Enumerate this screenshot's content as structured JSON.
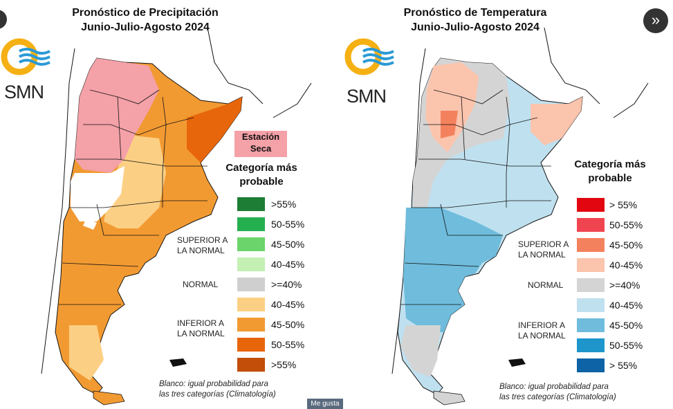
{
  "brand": "SMN",
  "precip": {
    "title_line1": "Pronóstico de Precipitación",
    "title_line2": "Junio-Julio-Agosto 2024",
    "estacion_line1": "Estación",
    "estacion_line2": "Seca",
    "legend_title_line1": "Categoría más",
    "legend_title_line2": "probable",
    "legend": [
      {
        "label": ">55%",
        "color": "#1e7d35"
      },
      {
        "label": "50-55%",
        "color": "#25b050"
      },
      {
        "label": "45-50%",
        "color": "#6bd46b"
      },
      {
        "label": "40-45%",
        "color": "#c4f0b4"
      },
      {
        "label": ">=40%",
        "color": "#cfcfcf"
      },
      {
        "label": "40-45%",
        "color": "#fcd084"
      },
      {
        "label": "45-50%",
        "color": "#f29a32"
      },
      {
        "label": "50-55%",
        "color": "#e7660c"
      },
      {
        "label": ">55%",
        "color": "#c24e0a"
      }
    ],
    "group_superior_1": "SUPERIOR A",
    "group_superior_2": "LA NORMAL",
    "group_normal": "NORMAL",
    "group_inferior_1": "INFERIOR A",
    "group_inferior_2": "LA NORMAL",
    "note_line1": "Blanco: igual probabilidad para",
    "note_line2": "las tres categorías (Climatología)"
  },
  "temp": {
    "title_line1": "Pronóstico de Temperatura",
    "title_line2": "Junio-Julio-Agosto 2024",
    "legend_title_line1": "Categoría más",
    "legend_title_line2": "probable",
    "legend": [
      {
        "label": "> 55%",
        "color": "#e1060f"
      },
      {
        "label": "50-55%",
        "color": "#f04550"
      },
      {
        "label": "45-50%",
        "color": "#f4815d"
      },
      {
        "label": "40-45%",
        "color": "#fbc4ad"
      },
      {
        "label": ">=40%",
        "color": "#d4d4d4"
      },
      {
        "label": "40-45%",
        "color": "#bfe0ef"
      },
      {
        "label": "45-50%",
        "color": "#6fbcdc"
      },
      {
        "label": "50-55%",
        "color": "#1e96cc"
      },
      {
        "label": "> 55%",
        "color": "#0d63a6"
      }
    ],
    "group_superior_1": "SUPERIOR A",
    "group_superior_2": "LA NORMAL",
    "group_normal": "NORMAL",
    "group_inferior_1": "INFERIOR A",
    "group_inferior_2": "LA NORMAL",
    "note_line1": "Blanco: igual probabilidad para",
    "note_line2": "las tres categorías (Climatología)"
  },
  "controls": {
    "next_icon": "»",
    "like_label": "Me gusta"
  }
}
